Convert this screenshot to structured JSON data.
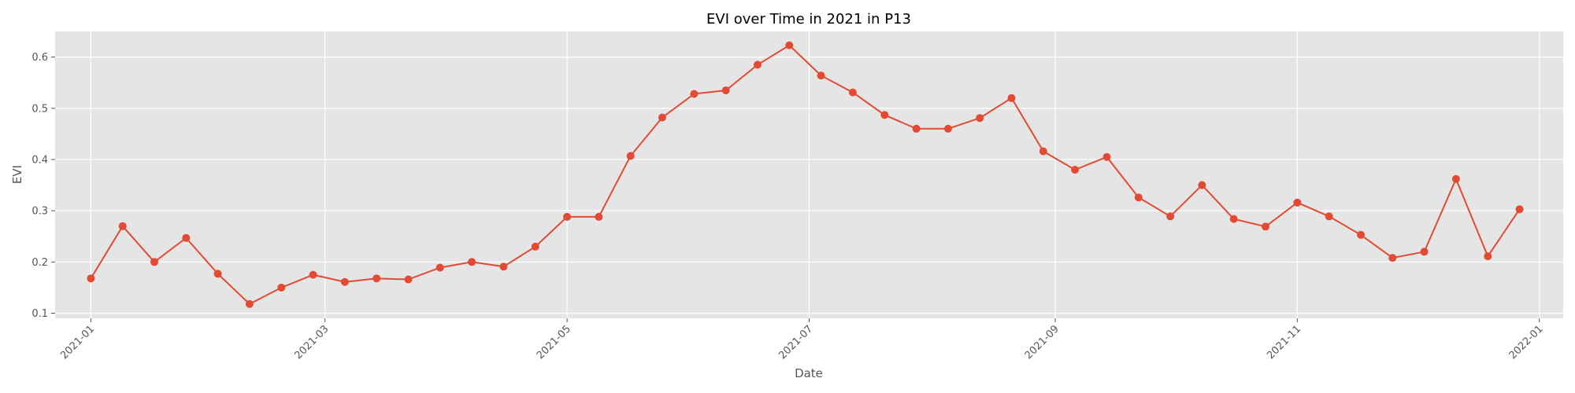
{
  "chart_data": {
    "type": "line",
    "title": "EVI over Time in 2021 in P13",
    "xlabel": "Date",
    "ylabel": "EVI",
    "xlim": [
      "2020-12-23",
      "2022-01-07"
    ],
    "ylim": [
      0.09,
      0.65
    ],
    "grid": true,
    "x_ticks": [
      "2021-01",
      "2021-03",
      "2021-05",
      "2021-07",
      "2021-09",
      "2021-11",
      "2022-01"
    ],
    "y_ticks": [
      "0.1",
      "0.2",
      "0.3",
      "0.4",
      "0.5",
      "0.6"
    ],
    "series": [
      {
        "x": [
          "2021-01-01",
          "2021-01-09",
          "2021-01-17",
          "2021-01-25",
          "2021-02-02",
          "2021-02-10",
          "2021-02-18",
          "2021-02-26",
          "2021-03-06",
          "2021-03-14",
          "2021-03-22",
          "2021-03-30",
          "2021-04-07",
          "2021-04-15",
          "2021-04-23",
          "2021-05-01",
          "2021-05-09",
          "2021-05-17",
          "2021-05-25",
          "2021-06-02",
          "2021-06-10",
          "2021-06-18",
          "2021-06-26",
          "2021-07-04",
          "2021-07-12",
          "2021-07-20",
          "2021-07-28",
          "2021-08-05",
          "2021-08-13",
          "2021-08-21",
          "2021-08-29",
          "2021-09-06",
          "2021-09-14",
          "2021-09-22",
          "2021-09-30",
          "2021-10-08",
          "2021-10-16",
          "2021-10-24",
          "2021-11-01",
          "2021-11-09",
          "2021-11-17",
          "2021-11-25",
          "2021-12-03",
          "2021-12-11",
          "2021-12-19",
          "2021-12-27"
        ],
        "values": [
          0.168,
          0.27,
          0.2,
          0.247,
          0.177,
          0.118,
          0.15,
          0.175,
          0.161,
          0.168,
          0.166,
          0.189,
          0.2,
          0.191,
          0.23,
          0.288,
          0.288,
          0.407,
          0.482,
          0.528,
          0.535,
          0.585,
          0.623,
          0.564,
          0.531,
          0.487,
          0.46,
          0.46,
          0.481,
          0.52,
          0.416,
          0.38,
          0.405,
          0.326,
          0.289,
          0.35,
          0.284,
          0.269,
          0.316,
          0.289,
          0.253,
          0.208,
          0.22,
          0.362,
          0.211,
          0.303
        ]
      }
    ],
    "line_color": "#e24a33",
    "plot_bg": "#e5e5e5",
    "grid_color": "#ffffff"
  }
}
